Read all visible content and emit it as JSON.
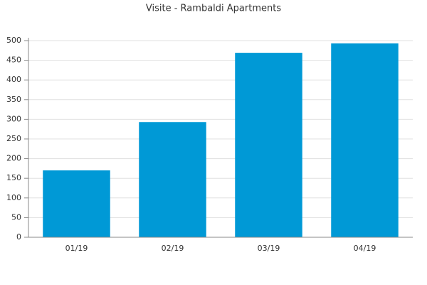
{
  "chart_data": {
    "type": "bar",
    "title": "Visite - Rambaldi Apartments",
    "categories": [
      "01/19",
      "02/19",
      "03/19",
      "04/19"
    ],
    "values": [
      170,
      293,
      469,
      493
    ],
    "color": "#0099d6",
    "ylim": [
      0,
      500
    ],
    "yticks": [
      0,
      50,
      100,
      150,
      200,
      250,
      300,
      350,
      400,
      450,
      500
    ],
    "grid": true
  }
}
